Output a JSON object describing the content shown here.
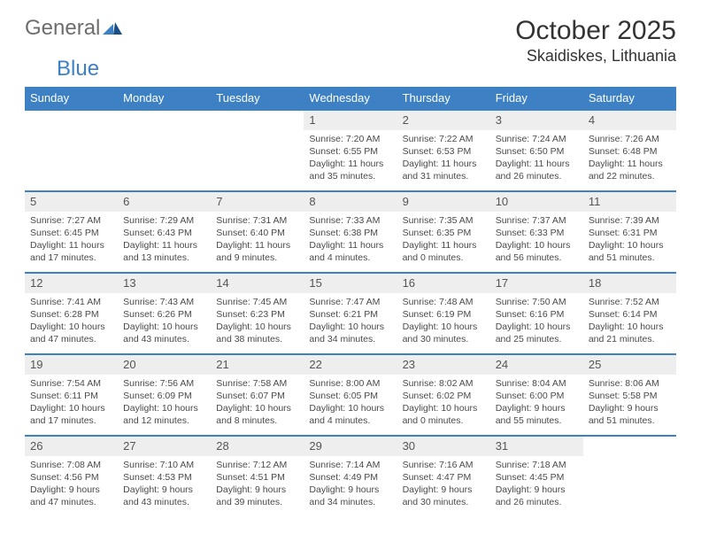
{
  "logo": {
    "word1": "General",
    "word2": "Blue"
  },
  "title": "October 2025",
  "location": "Skaidiskes, Lithuania",
  "theme": {
    "header_bg": "#3d80c4",
    "header_fg": "#ffffff",
    "row_border": "#3d80c4",
    "daynum_bg": "#eeeeee",
    "text_color": "#4a4a4a"
  },
  "day_labels": [
    "Sunday",
    "Monday",
    "Tuesday",
    "Wednesday",
    "Thursday",
    "Friday",
    "Saturday"
  ],
  "weeks": [
    [
      null,
      null,
      null,
      {
        "n": "1",
        "sr": "7:20 AM",
        "ss": "6:55 PM",
        "dl": "11 hours and 35 minutes."
      },
      {
        "n": "2",
        "sr": "7:22 AM",
        "ss": "6:53 PM",
        "dl": "11 hours and 31 minutes."
      },
      {
        "n": "3",
        "sr": "7:24 AM",
        "ss": "6:50 PM",
        "dl": "11 hours and 26 minutes."
      },
      {
        "n": "4",
        "sr": "7:26 AM",
        "ss": "6:48 PM",
        "dl": "11 hours and 22 minutes."
      }
    ],
    [
      {
        "n": "5",
        "sr": "7:27 AM",
        "ss": "6:45 PM",
        "dl": "11 hours and 17 minutes."
      },
      {
        "n": "6",
        "sr": "7:29 AM",
        "ss": "6:43 PM",
        "dl": "11 hours and 13 minutes."
      },
      {
        "n": "7",
        "sr": "7:31 AM",
        "ss": "6:40 PM",
        "dl": "11 hours and 9 minutes."
      },
      {
        "n": "8",
        "sr": "7:33 AM",
        "ss": "6:38 PM",
        "dl": "11 hours and 4 minutes."
      },
      {
        "n": "9",
        "sr": "7:35 AM",
        "ss": "6:35 PM",
        "dl": "11 hours and 0 minutes."
      },
      {
        "n": "10",
        "sr": "7:37 AM",
        "ss": "6:33 PM",
        "dl": "10 hours and 56 minutes."
      },
      {
        "n": "11",
        "sr": "7:39 AM",
        "ss": "6:31 PM",
        "dl": "10 hours and 51 minutes."
      }
    ],
    [
      {
        "n": "12",
        "sr": "7:41 AM",
        "ss": "6:28 PM",
        "dl": "10 hours and 47 minutes."
      },
      {
        "n": "13",
        "sr": "7:43 AM",
        "ss": "6:26 PM",
        "dl": "10 hours and 43 minutes."
      },
      {
        "n": "14",
        "sr": "7:45 AM",
        "ss": "6:23 PM",
        "dl": "10 hours and 38 minutes."
      },
      {
        "n": "15",
        "sr": "7:47 AM",
        "ss": "6:21 PM",
        "dl": "10 hours and 34 minutes."
      },
      {
        "n": "16",
        "sr": "7:48 AM",
        "ss": "6:19 PM",
        "dl": "10 hours and 30 minutes."
      },
      {
        "n": "17",
        "sr": "7:50 AM",
        "ss": "6:16 PM",
        "dl": "10 hours and 25 minutes."
      },
      {
        "n": "18",
        "sr": "7:52 AM",
        "ss": "6:14 PM",
        "dl": "10 hours and 21 minutes."
      }
    ],
    [
      {
        "n": "19",
        "sr": "7:54 AM",
        "ss": "6:11 PM",
        "dl": "10 hours and 17 minutes."
      },
      {
        "n": "20",
        "sr": "7:56 AM",
        "ss": "6:09 PM",
        "dl": "10 hours and 12 minutes."
      },
      {
        "n": "21",
        "sr": "7:58 AM",
        "ss": "6:07 PM",
        "dl": "10 hours and 8 minutes."
      },
      {
        "n": "22",
        "sr": "8:00 AM",
        "ss": "6:05 PM",
        "dl": "10 hours and 4 minutes."
      },
      {
        "n": "23",
        "sr": "8:02 AM",
        "ss": "6:02 PM",
        "dl": "10 hours and 0 minutes."
      },
      {
        "n": "24",
        "sr": "8:04 AM",
        "ss": "6:00 PM",
        "dl": "9 hours and 55 minutes."
      },
      {
        "n": "25",
        "sr": "8:06 AM",
        "ss": "5:58 PM",
        "dl": "9 hours and 51 minutes."
      }
    ],
    [
      {
        "n": "26",
        "sr": "7:08 AM",
        "ss": "4:56 PM",
        "dl": "9 hours and 47 minutes."
      },
      {
        "n": "27",
        "sr": "7:10 AM",
        "ss": "4:53 PM",
        "dl": "9 hours and 43 minutes."
      },
      {
        "n": "28",
        "sr": "7:12 AM",
        "ss": "4:51 PM",
        "dl": "9 hours and 39 minutes."
      },
      {
        "n": "29",
        "sr": "7:14 AM",
        "ss": "4:49 PM",
        "dl": "9 hours and 34 minutes."
      },
      {
        "n": "30",
        "sr": "7:16 AM",
        "ss": "4:47 PM",
        "dl": "9 hours and 30 minutes."
      },
      {
        "n": "31",
        "sr": "7:18 AM",
        "ss": "4:45 PM",
        "dl": "9 hours and 26 minutes."
      },
      null
    ]
  ],
  "labels": {
    "sunrise": "Sunrise:",
    "sunset": "Sunset:",
    "daylight": "Daylight:"
  }
}
